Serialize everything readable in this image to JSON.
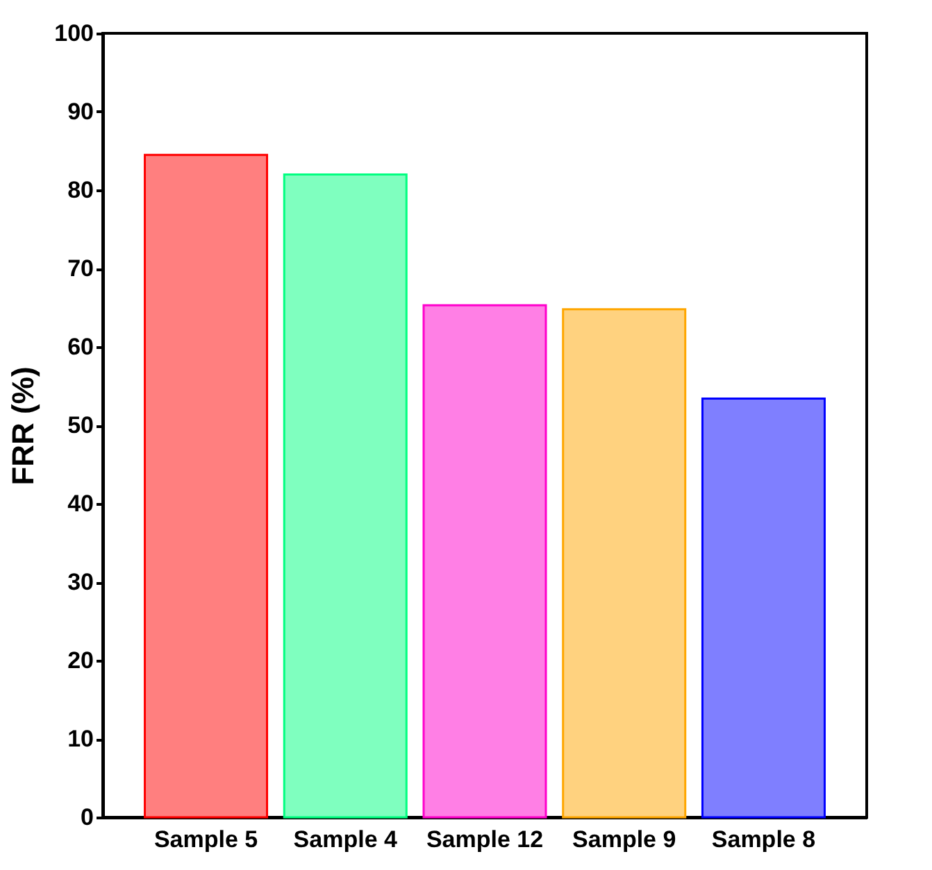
{
  "chart_data": {
    "type": "bar",
    "ylabel": "FRR (%)",
    "categories": [
      "Sample 5",
      "Sample 4",
      "Sample 12",
      "Sample 9",
      "Sample 8"
    ],
    "values": [
      84.5,
      82.0,
      65.3,
      64.8,
      53.4
    ],
    "colors": [
      "#ff7f7f",
      "#7fffbf",
      "#ff7fe5",
      "#ffd27f",
      "#7f7fff"
    ],
    "ylim": [
      0,
      100
    ],
    "yticks": [
      0,
      10,
      20,
      30,
      40,
      50,
      60,
      70,
      80,
      90,
      100
    ],
    "grid": false
  }
}
